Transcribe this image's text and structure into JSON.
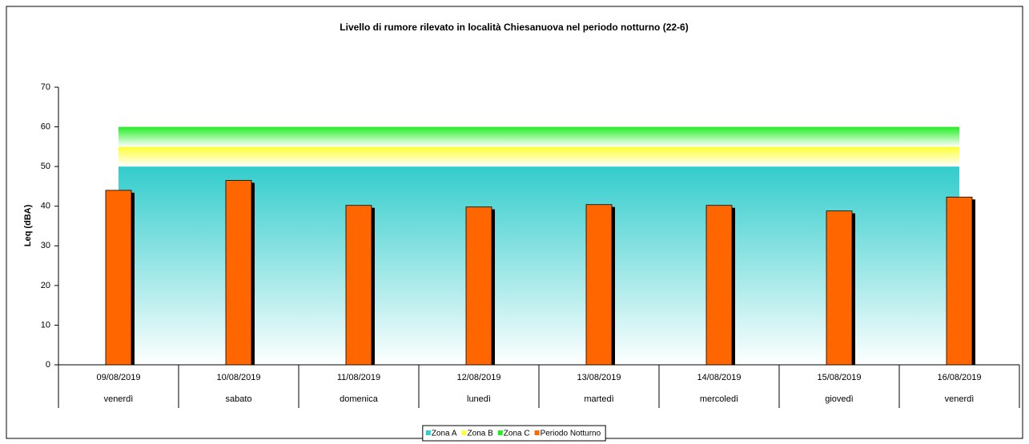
{
  "chart_data": {
    "type": "bar",
    "title": "Livello di rumore rilevato in località  Chiesanuova nel  periodo notturno (22-6)",
    "y_label": "Leq (dBA)",
    "categories": [
      "09/08/2019",
      "10/08/2019",
      "11/08/2019",
      "12/08/2019",
      "13/08/2019",
      "14/08/2019",
      "15/08/2019",
      "16/08/2019"
    ],
    "weekdays": [
      "venerdì",
      "sabato",
      "domenica",
      "lunedì",
      "martedì",
      "mercoledì",
      "giovedì",
      "venerdì"
    ],
    "series": [
      {
        "name": "Zona A",
        "color": "#33cccc",
        "kind": "area",
        "values": [
          50,
          50,
          50,
          50,
          50,
          50,
          50,
          50
        ]
      },
      {
        "name": "Zona B",
        "color": "#ffff33",
        "kind": "area",
        "values": [
          5,
          5,
          5,
          5,
          5,
          5,
          5,
          5
        ]
      },
      {
        "name": "Zona C",
        "color": "#22ee22",
        "kind": "area",
        "values": [
          5,
          5,
          5,
          5,
          5,
          5,
          5,
          5
        ]
      },
      {
        "name": "Periodo Notturno",
        "color": "#ff6600",
        "kind": "bar",
        "values": [
          44,
          46.5,
          40.2,
          39.8,
          40.4,
          40.2,
          38.8,
          42.3
        ]
      }
    ],
    "ylim": [
      0,
      70
    ],
    "yticks": [
      0,
      10,
      20,
      30,
      40,
      50,
      60,
      70
    ],
    "legend": "bottom"
  }
}
